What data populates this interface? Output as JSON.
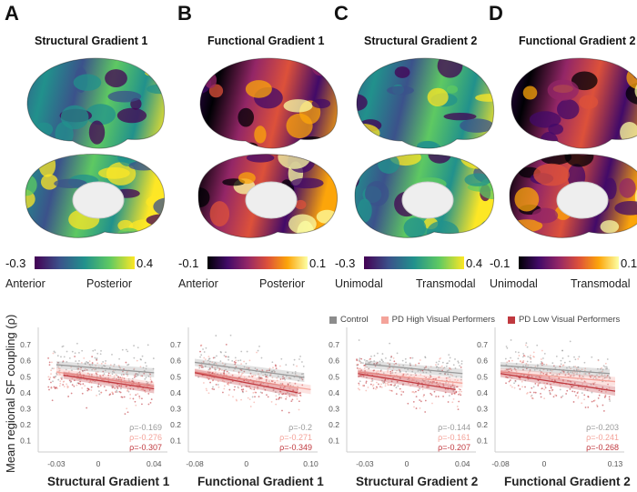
{
  "columns": [
    {
      "letter": "A",
      "title": "Structural Gradient 1",
      "cmap": "viridis",
      "cb_min": "-0.3",
      "cb_max": "0.4",
      "cb_left": "Anterior",
      "cb_right": "Posterior"
    },
    {
      "letter": "B",
      "title": "Functional Gradient 1",
      "cmap": "inferno",
      "cb_min": "-0.1",
      "cb_max": "0.1",
      "cb_left": "Anterior",
      "cb_right": "Posterior"
    },
    {
      "letter": "C",
      "title": "Structural Gradient 2",
      "cmap": "viridis",
      "cb_min": "-0.3",
      "cb_max": "0.4",
      "cb_left": "Unimodal",
      "cb_right": "Transmodal"
    },
    {
      "letter": "D",
      "title": "Functional Gradient 2",
      "cmap": "inferno",
      "cb_min": "-0.1",
      "cb_max": "0.1",
      "cb_left": "Unimodal",
      "cb_right": "Transmodal"
    }
  ],
  "ylabel": "Mean regional SF coupling (ρ)",
  "legend": [
    {
      "label": "Control",
      "color": "#8c8c8c"
    },
    {
      "label": "PD High Visual Performers",
      "color": "#f4a39a"
    },
    {
      "label": "PD Low Visual Performers",
      "color": "#c0393f"
    }
  ],
  "chart_data": [
    {
      "type": "scatter",
      "xlabel": "Structural Gradient 1",
      "xlim": [
        -0.043,
        0.047
      ],
      "ylim": [
        0.03,
        0.78
      ],
      "xticks": [
        "-0.03",
        "0",
        "0.04"
      ],
      "xtick_values": [
        -0.03,
        0,
        0.04
      ],
      "yticks": [
        "0.1",
        "0.2",
        "0.3",
        "0.4",
        "0.5",
        "0.6",
        "0.7"
      ],
      "ytick_values": [
        0.1,
        0.2,
        0.3,
        0.4,
        0.5,
        0.6,
        0.7
      ],
      "fits": [
        {
          "group": "Control",
          "x": [
            -0.03,
            0.04
          ],
          "y": [
            0.575,
            0.525
          ],
          "rho": "ρ=-0.169"
        },
        {
          "group": "PD High Visual Performers",
          "x": [
            -0.03,
            0.04
          ],
          "y": [
            0.53,
            0.44
          ],
          "rho": "ρ=-0.276"
        },
        {
          "group": "PD Low Visual Performers",
          "x": [
            -0.025,
            0.04
          ],
          "y": [
            0.51,
            0.425
          ],
          "rho": "ρ=-0.307"
        }
      ]
    },
    {
      "type": "scatter",
      "xlabel": "Functional Gradient 1",
      "xlim": [
        -0.09,
        0.105
      ],
      "ylim": [
        0.03,
        0.78
      ],
      "xticks": [
        "-0.08",
        "0",
        "0.10"
      ],
      "xtick_values": [
        -0.08,
        0,
        0.1
      ],
      "yticks": [
        "0.1",
        "0.2",
        "0.3",
        "0.4",
        "0.5",
        "0.6",
        "0.7"
      ],
      "ytick_values": [
        0.1,
        0.2,
        0.3,
        0.4,
        0.5,
        0.6,
        0.7
      ],
      "fits": [
        {
          "group": "Control",
          "x": [
            -0.08,
            0.09
          ],
          "y": [
            0.59,
            0.495
          ],
          "rho": "ρ=-0.2"
        },
        {
          "group": "PD High Visual Performers",
          "x": [
            -0.08,
            0.1
          ],
          "y": [
            0.53,
            0.42
          ],
          "rho": "ρ=-0.271"
        },
        {
          "group": "PD Low Visual Performers",
          "x": [
            -0.08,
            0.08
          ],
          "y": [
            0.525,
            0.4
          ],
          "rho": "ρ=-0.349"
        }
      ]
    },
    {
      "type": "scatter",
      "xlabel": "Structural Gradient 2",
      "xlim": [
        -0.043,
        0.047
      ],
      "ylim": [
        0.03,
        0.78
      ],
      "xticks": [
        "-0.03",
        "0",
        "0.04"
      ],
      "xtick_values": [
        -0.03,
        0,
        0.04
      ],
      "yticks": [
        "0.1",
        "0.2",
        "0.3",
        "0.4",
        "0.5",
        "0.6",
        "0.7"
      ],
      "ytick_values": [
        0.1,
        0.2,
        0.3,
        0.4,
        0.5,
        0.6,
        0.7
      ],
      "fits": [
        {
          "group": "Control",
          "x": [
            -0.03,
            0.04
          ],
          "y": [
            0.58,
            0.52
          ],
          "rho": "ρ=-0.144"
        },
        {
          "group": "PD High Visual Performers",
          "x": [
            -0.035,
            0.04
          ],
          "y": [
            0.53,
            0.46
          ],
          "rho": "ρ=-0.161"
        },
        {
          "group": "PD Low Visual Performers",
          "x": [
            -0.035,
            0.035
          ],
          "y": [
            0.52,
            0.42
          ],
          "rho": "ρ=-0.207"
        }
      ]
    },
    {
      "type": "scatter",
      "xlabel": "Functional Gradient 2",
      "xlim": [
        -0.09,
        0.14
      ],
      "ylim": [
        0.03,
        0.78
      ],
      "xticks": [
        "-0.08",
        "0",
        "0.13"
      ],
      "xtick_values": [
        -0.08,
        0,
        0.13
      ],
      "yticks": [
        "0.1",
        "0.2",
        "0.3",
        "0.4",
        "0.5",
        "0.6",
        "0.7"
      ],
      "ytick_values": [
        0.1,
        0.2,
        0.3,
        0.4,
        0.5,
        0.6,
        0.7
      ],
      "fits": [
        {
          "group": "Control",
          "x": [
            -0.08,
            0.12
          ],
          "y": [
            0.57,
            0.52
          ],
          "rho": "ρ=-0.203"
        },
        {
          "group": "PD High Visual Performers",
          "x": [
            -0.08,
            0.13
          ],
          "y": [
            0.53,
            0.47
          ],
          "rho": "ρ=-0.241"
        },
        {
          "group": "PD Low Visual Performers",
          "x": [
            -0.08,
            0.13
          ],
          "y": [
            0.52,
            0.41
          ],
          "rho": "ρ=-0.268"
        }
      ]
    }
  ]
}
